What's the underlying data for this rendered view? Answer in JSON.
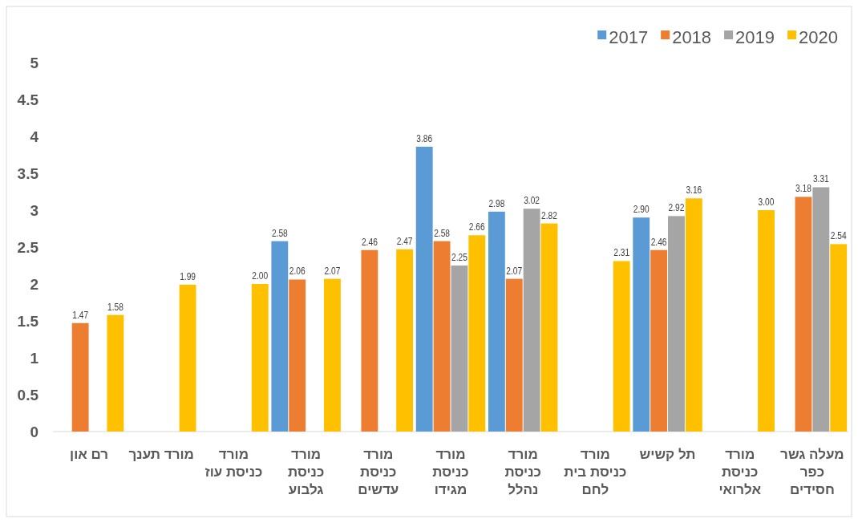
{
  "chart_data": {
    "type": "bar",
    "categories": [
      "רם און",
      "מורד תענך",
      "מורד כניסת עוז",
      "מורד כניסת גלבוע",
      "מורד כניסת עדשים",
      "מורד כניסת מגידו",
      "מורד כניסת נהלל",
      "מורד כניסת בית לחם",
      "תל קשיש",
      "מורד כניסת אלרואי",
      "מעלה גשר כפר חסידים"
    ],
    "series": [
      {
        "name": "2017",
        "color": "#5b9bd5",
        "values": [
          null,
          null,
          null,
          2.58,
          null,
          3.86,
          2.98,
          null,
          2.9,
          null,
          null
        ],
        "value_labels": [
          null,
          null,
          null,
          "2.58",
          null,
          "3.86",
          "2.98",
          null,
          "2.90",
          null,
          null
        ]
      },
      {
        "name": "2018",
        "color": "#ed7d31",
        "values": [
          1.47,
          null,
          null,
          2.06,
          2.46,
          2.58,
          2.07,
          null,
          2.46,
          null,
          3.18
        ],
        "value_labels": [
          "1.47",
          null,
          null,
          "2.06",
          "2.46",
          "2.58",
          "2.07",
          null,
          "2.46",
          null,
          "3.18"
        ]
      },
      {
        "name": "2019",
        "color": "#a5a5a5",
        "values": [
          null,
          null,
          null,
          null,
          null,
          2.25,
          3.02,
          null,
          2.92,
          null,
          3.31
        ],
        "value_labels": [
          null,
          null,
          null,
          null,
          null,
          "2.25",
          "3.02",
          null,
          "2.92",
          null,
          "3.31"
        ]
      },
      {
        "name": "2020",
        "color": "#ffc000",
        "values": [
          1.58,
          1.99,
          2.0,
          2.07,
          2.47,
          2.66,
          2.82,
          2.31,
          3.16,
          3.0,
          2.54
        ],
        "value_labels": [
          "1.58",
          "1.99",
          "2.00",
          "2.07",
          "2.47",
          "2.66",
          "2.82",
          "2.31",
          "3.16",
          "3.00",
          "2.54"
        ]
      }
    ],
    "ylim": [
      0,
      5
    ],
    "yticks": [
      0,
      0.5,
      1,
      1.5,
      2,
      2.5,
      3,
      3.5,
      4,
      4.5,
      5
    ],
    "grid": false,
    "legend": "top right"
  }
}
